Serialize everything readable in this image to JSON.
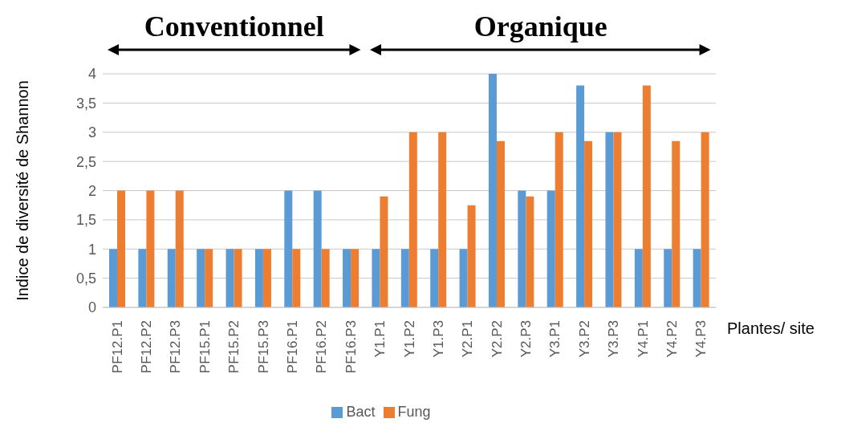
{
  "chart_data": {
    "type": "bar",
    "ylabel": "Indice de diversité de Shannon",
    "xlabel": "Plantes/ site",
    "annotations": [
      "Conventionnel",
      "Organique"
    ],
    "categories": [
      "PF12.P1",
      "PF12.P2",
      "PF12.P3",
      "PF15.P1",
      "PF15.P2",
      "PF15.P3",
      "PF16.P1",
      "PF16.P2",
      "PF16.P3",
      "Y1.P1",
      "Y1.P2",
      "Y1.P3",
      "Y2.P1",
      "Y2.P2",
      "Y2.P3",
      "Y3.P1",
      "Y3.P2",
      "Y3.P3",
      "Y4.P1",
      "Y4.P2",
      "Y4.P3"
    ],
    "series": [
      {
        "name": "Bact",
        "color": "#5b9bd5",
        "values": [
          1,
          1,
          1,
          1,
          1,
          1,
          2,
          2,
          1,
          1,
          1,
          1,
          1,
          4,
          2,
          2,
          3.8,
          3,
          1,
          1,
          1
        ]
      },
      {
        "name": "Fung",
        "color": "#ed7d31",
        "values": [
          2,
          2,
          2,
          1,
          1,
          1,
          1,
          1,
          1,
          1.9,
          3,
          3,
          1.75,
          2.85,
          1.9,
          3,
          2.85,
          3,
          3.8,
          2.85,
          3
        ]
      }
    ],
    "ylim": [
      0,
      4
    ],
    "yticks": [
      0,
      {
        "value": 0.5,
        "label": "0,5"
      },
      1,
      {
        "value": 1.5,
        "label": "1,5"
      },
      2,
      {
        "value": 2.5,
        "label": "2,5"
      },
      3,
      {
        "value": 3.5,
        "label": "3,5"
      },
      4
    ],
    "grid": "y",
    "legend": "bottom"
  }
}
